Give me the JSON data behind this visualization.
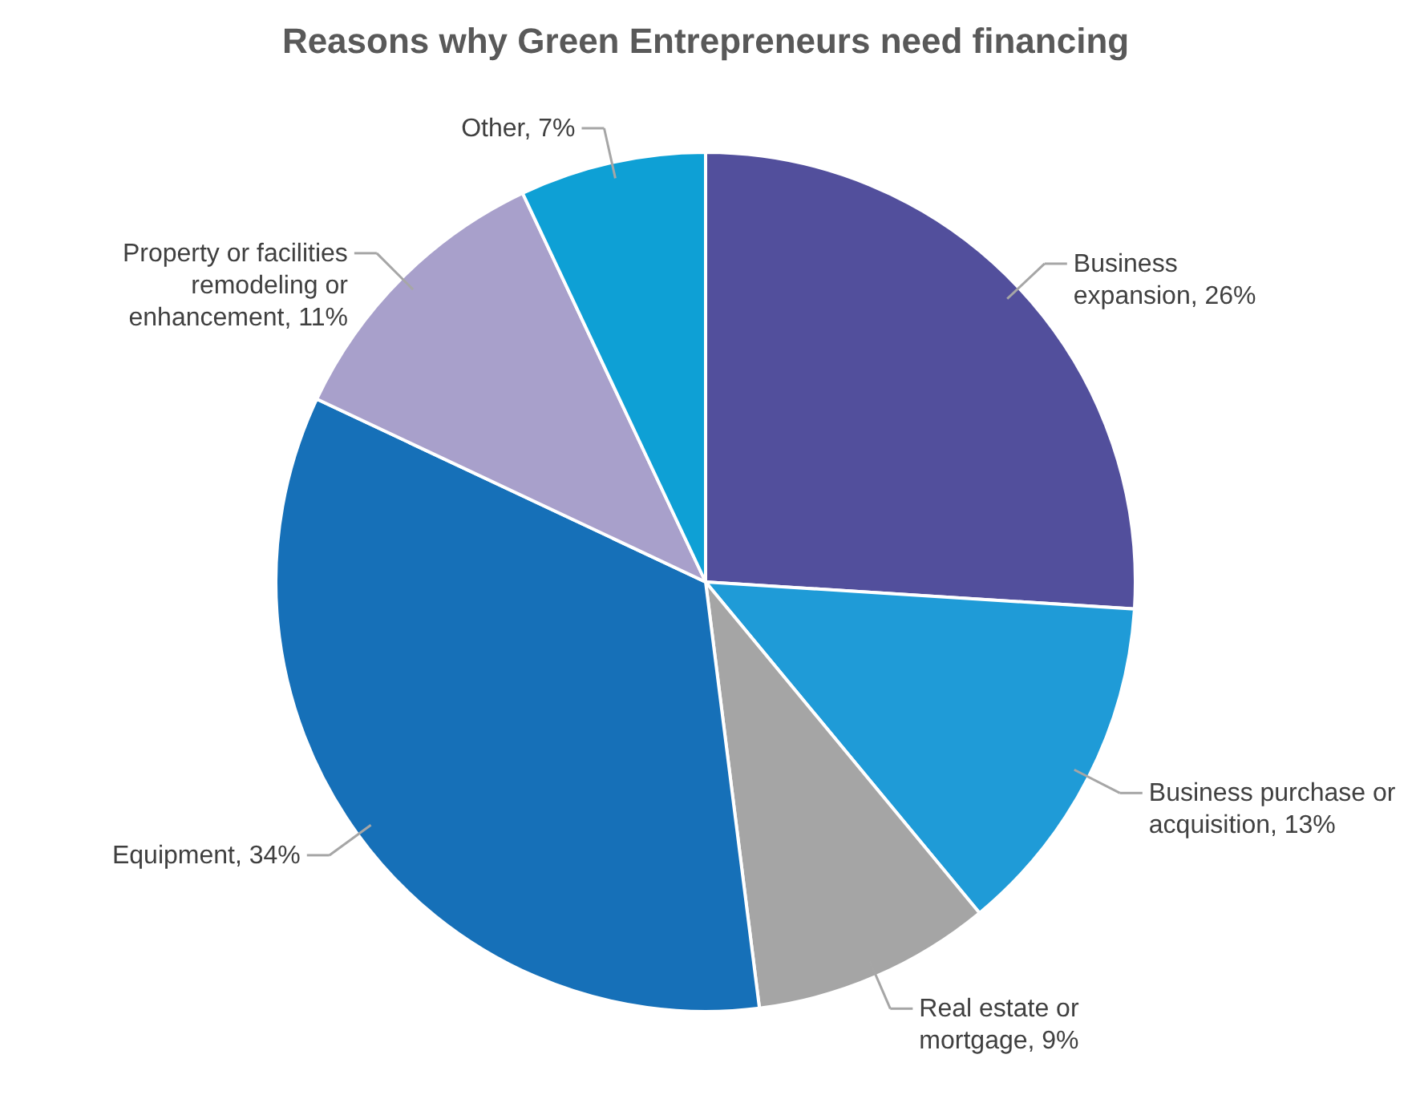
{
  "chart_data": {
    "type": "pie",
    "title": "Reasons why Green Entrepreneurs need financing",
    "categories": [
      "Business expansion",
      "Business purchase or acquisition",
      "Real estate or mortgage",
      "Equipment",
      "Property or facilities remodeling or enhancement",
      "Other"
    ],
    "values": [
      26,
      13,
      9,
      34,
      11,
      7
    ],
    "value_labels": [
      "26%",
      "13%",
      "9%",
      "34%",
      "11%",
      "7%"
    ],
    "colors": [
      "#524f9c",
      "#1f9bd7",
      "#a5a5a5",
      "#1670b8",
      "#a8a0cb",
      "#0ea0d5"
    ],
    "legend": false
  }
}
